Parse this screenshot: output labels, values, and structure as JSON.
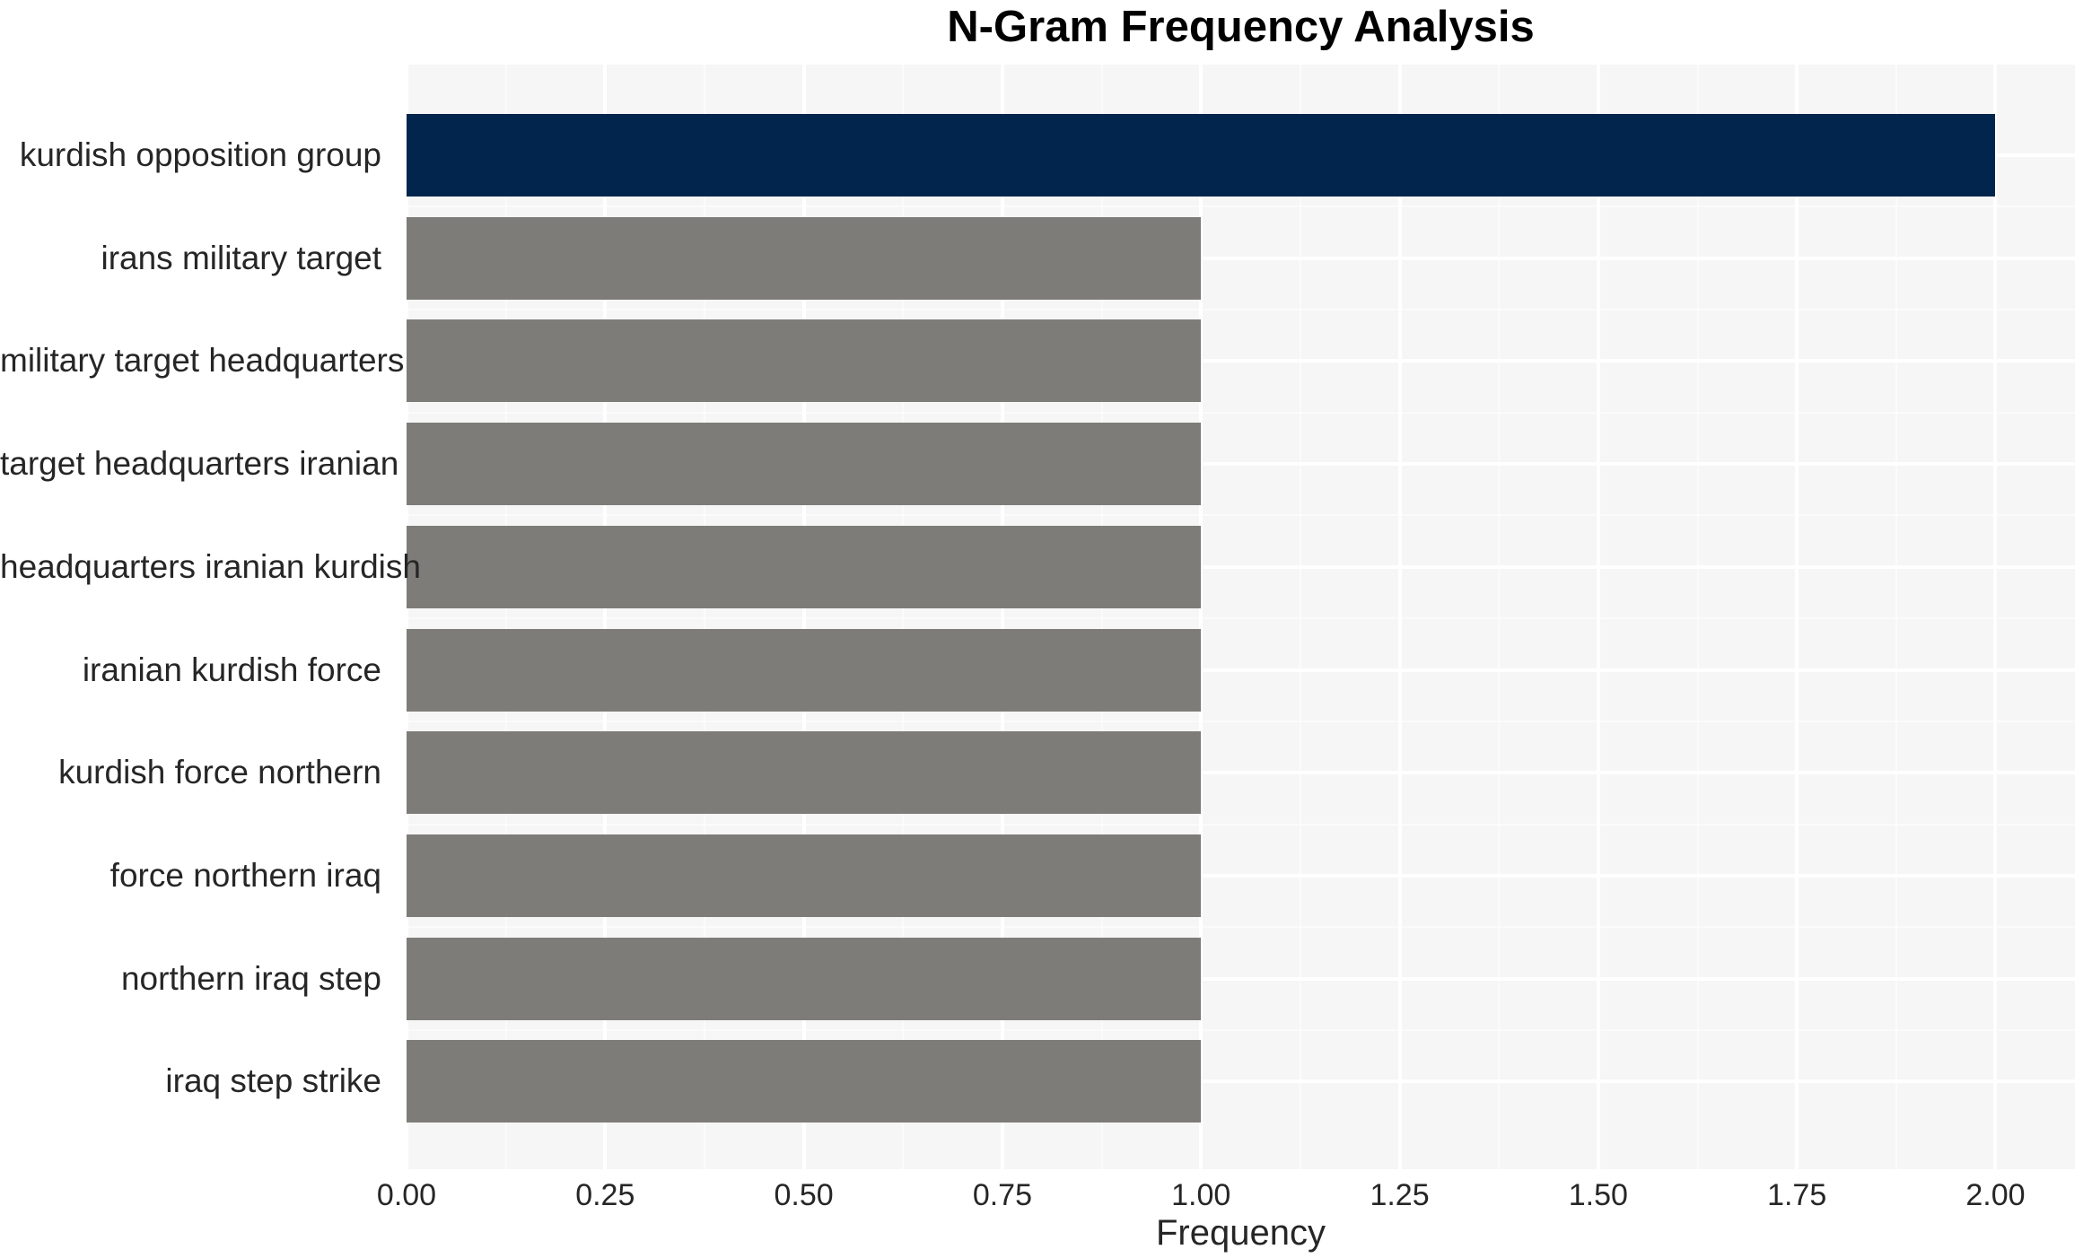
{
  "chart_data": {
    "type": "bar",
    "orientation": "horizontal",
    "title": "N-Gram Frequency Analysis",
    "xlabel": "Frequency",
    "ylabel": "",
    "categories": [
      "kurdish opposition group",
      "irans military target",
      "military target headquarters",
      "target headquarters iranian",
      "headquarters iranian kurdish",
      "iranian kurdish force",
      "kurdish force northern",
      "force northern iraq",
      "northern iraq step",
      "iraq step strike"
    ],
    "values": [
      2.0,
      1.0,
      1.0,
      1.0,
      1.0,
      1.0,
      1.0,
      1.0,
      1.0,
      1.0
    ],
    "bar_colors": [
      "#02254d",
      "#7d7c78",
      "#7d7c78",
      "#7d7c78",
      "#7d7c78",
      "#7d7c78",
      "#7d7c78",
      "#7d7c78",
      "#7d7c78",
      "#7d7c78"
    ],
    "xlim": [
      0,
      2.1
    ],
    "xticks": {
      "values": [
        0.0,
        0.25,
        0.5,
        0.75,
        1.0,
        1.25,
        1.5,
        1.75,
        2.0
      ],
      "labels": [
        "0.00",
        "0.25",
        "0.50",
        "0.75",
        "1.00",
        "1.25",
        "1.50",
        "1.75",
        "2.00"
      ]
    },
    "grid": true,
    "legend": false
  },
  "colors": {
    "highlight_bar": "#02254d",
    "default_bar": "#7d7c78",
    "plot_background": "#f6f6f7",
    "grid_major": "#ffffff",
    "text": "#262626",
    "title_text": "#000000"
  }
}
